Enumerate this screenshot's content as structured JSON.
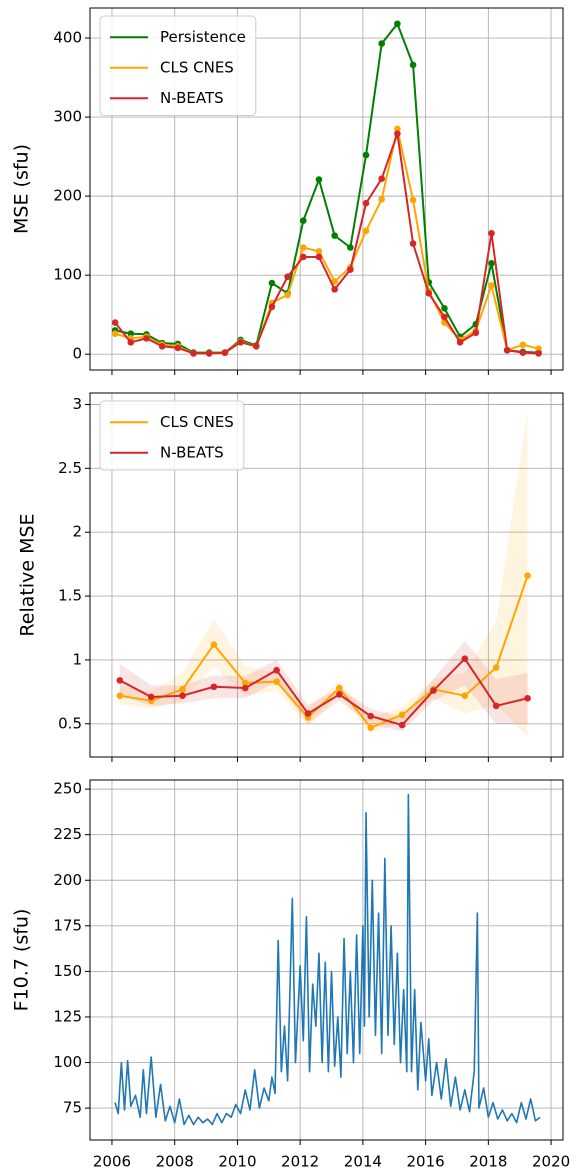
{
  "chart_data": [
    {
      "type": "line",
      "ylabel": "MSE (sfu)",
      "marker": true,
      "grid": true,
      "legend": "upper left",
      "x": [
        2006.1,
        2006.6,
        2007.1,
        2007.6,
        2008.1,
        2008.6,
        2009.1,
        2009.6,
        2010.1,
        2010.6,
        2011.1,
        2011.6,
        2012.1,
        2012.6,
        2013.1,
        2013.6,
        2014.1,
        2014.6,
        2015.1,
        2015.6,
        2016.1,
        2016.6,
        2017.1,
        2017.6,
        2018.1,
        2018.6,
        2019.1,
        2019.6
      ],
      "series": [
        {
          "name": "Persistence",
          "color": "#008000",
          "values": [
            30,
            26,
            25,
            14,
            13,
            2,
            2,
            2,
            18,
            11,
            90,
            77,
            169,
            221,
            150,
            135,
            252,
            393,
            418,
            366,
            91,
            58,
            22,
            38,
            115,
            5,
            3,
            2
          ]
        },
        {
          "name": "CLS CNES",
          "color": "#ffa500",
          "values": [
            26,
            20,
            22,
            12,
            10,
            1,
            1,
            2,
            16,
            10,
            65,
            75,
            135,
            130,
            92,
            110,
            156,
            196,
            285,
            195,
            80,
            40,
            18,
            30,
            87,
            5,
            12,
            7
          ]
        },
        {
          "name": "N-BEATS",
          "color": "#d62728",
          "values": [
            40,
            15,
            20,
            10,
            8,
            1,
            1,
            2,
            15,
            10,
            60,
            98,
            123,
            123,
            82,
            107,
            191,
            222,
            279,
            140,
            77,
            47,
            15,
            27,
            153,
            5,
            2,
            1
          ]
        }
      ],
      "xlim": [
        2005.3,
        2020.38
      ],
      "xticks": [
        2006,
        2008,
        2010,
        2012,
        2014,
        2016,
        2018,
        2020
      ],
      "ylim": [
        -20,
        438
      ],
      "yticks": [
        0,
        100,
        200,
        300,
        400
      ]
    },
    {
      "type": "line",
      "ylabel": "Relative MSE",
      "marker": true,
      "grid": true,
      "legend": "upper left",
      "x": [
        2006.25,
        2007.25,
        2008.25,
        2009.25,
        2010.25,
        2011.25,
        2012.25,
        2013.25,
        2014.25,
        2015.25,
        2016.25,
        2017.25,
        2018.25,
        2019.25
      ],
      "series": [
        {
          "name": "CLS CNES",
          "color": "#ffa500",
          "values": [
            0.72,
            0.68,
            0.77,
            1.12,
            0.82,
            0.83,
            0.55,
            0.78,
            0.47,
            0.57,
            0.77,
            0.72,
            0.94,
            1.66
          ],
          "lower": [
            0.65,
            0.62,
            0.68,
            0.95,
            0.72,
            0.76,
            0.48,
            0.73,
            0.42,
            0.52,
            0.7,
            0.58,
            0.65,
            0.4
          ],
          "upper": [
            0.8,
            0.75,
            0.9,
            1.32,
            0.95,
            0.9,
            0.62,
            0.83,
            0.55,
            0.63,
            0.85,
            0.9,
            1.3,
            2.95
          ]
        },
        {
          "name": "N-BEATS",
          "color": "#d62728",
          "values": [
            0.84,
            0.71,
            0.72,
            0.79,
            0.78,
            0.92,
            0.58,
            0.73,
            0.56,
            0.49,
            0.76,
            1.01,
            0.64,
            0.7
          ],
          "lower": [
            0.72,
            0.64,
            0.66,
            0.7,
            0.7,
            0.83,
            0.5,
            0.68,
            0.5,
            0.44,
            0.68,
            0.8,
            0.5,
            0.5
          ],
          "upper": [
            0.97,
            0.8,
            0.8,
            0.88,
            0.87,
            1.0,
            0.65,
            0.78,
            0.62,
            0.55,
            0.85,
            1.15,
            0.85,
            0.9
          ]
        }
      ],
      "xlim": [
        2005.3,
        2020.38
      ],
      "xticks": [
        2006,
        2008,
        2010,
        2012,
        2014,
        2016,
        2018,
        2020
      ],
      "ylim": [
        0.24,
        3.09
      ],
      "yticks": [
        0.5,
        1.0,
        1.5,
        2.0,
        2.5,
        3.0
      ]
    },
    {
      "type": "line",
      "ylabel": "F10.7 (sfu)",
      "marker": false,
      "grid": true,
      "x": [
        2006.1,
        2006.2,
        2006.3,
        2006.4,
        2006.5,
        2006.6,
        2006.75,
        2006.9,
        2007.0,
        2007.1,
        2007.25,
        2007.4,
        2007.55,
        2007.7,
        2007.85,
        2008.0,
        2008.15,
        2008.3,
        2008.45,
        2008.6,
        2008.75,
        2008.9,
        2009.05,
        2009.2,
        2009.35,
        2009.5,
        2009.65,
        2009.8,
        2009.95,
        2010.1,
        2010.25,
        2010.4,
        2010.55,
        2010.7,
        2010.85,
        2011.0,
        2011.1,
        2011.2,
        2011.3,
        2011.4,
        2011.5,
        2011.6,
        2011.75,
        2011.85,
        2012.0,
        2012.1,
        2012.2,
        2012.3,
        2012.4,
        2012.5,
        2012.6,
        2012.7,
        2012.8,
        2012.9,
        2013.0,
        2013.1,
        2013.2,
        2013.3,
        2013.4,
        2013.5,
        2013.6,
        2013.7,
        2013.8,
        2013.9,
        2014.0,
        2014.05,
        2014.1,
        2014.2,
        2014.3,
        2014.4,
        2014.5,
        2014.6,
        2014.7,
        2014.8,
        2014.9,
        2015.0,
        2015.1,
        2015.2,
        2015.3,
        2015.4,
        2015.45,
        2015.55,
        2015.65,
        2015.75,
        2015.85,
        2016.0,
        2016.1,
        2016.2,
        2016.35,
        2016.5,
        2016.65,
        2016.8,
        2016.95,
        2017.1,
        2017.25,
        2017.4,
        2017.55,
        2017.65,
        2017.7,
        2017.85,
        2018.0,
        2018.15,
        2018.3,
        2018.45,
        2018.6,
        2018.75,
        2018.9,
        2019.05,
        2019.2,
        2019.35,
        2019.5,
        2019.65
      ],
      "series": [
        {
          "name": "F10.7",
          "color": "#1f77b4",
          "values": [
            78,
            72,
            100,
            74,
            101,
            76,
            82,
            70,
            96,
            72,
            103,
            70,
            88,
            68,
            76,
            67,
            80,
            66,
            71,
            66,
            70,
            67,
            69,
            66,
            72,
            67,
            72,
            70,
            77,
            72,
            85,
            74,
            96,
            75,
            86,
            79,
            92,
            83,
            167,
            95,
            120,
            90,
            190,
            100,
            153,
            112,
            180,
            95,
            143,
            120,
            160,
            100,
            155,
            95,
            150,
            98,
            125,
            92,
            168,
            105,
            150,
            100,
            170,
            105,
            175,
            120,
            237,
            125,
            200,
            115,
            182,
            105,
            212,
            115,
            175,
            110,
            160,
            100,
            140,
            95,
            247,
            95,
            140,
            85,
            122,
            90,
            113,
            82,
            100,
            80,
            102,
            76,
            92,
            74,
            85,
            73,
            95,
            182,
            75,
            86,
            70,
            78,
            69,
            74,
            68,
            72,
            67,
            78,
            69,
            80,
            68,
            70
          ]
        }
      ],
      "xlim": [
        2005.3,
        2020.38
      ],
      "xticks": [
        2006,
        2008,
        2010,
        2012,
        2014,
        2016,
        2018,
        2020
      ],
      "ylim": [
        57.5,
        255
      ],
      "yticks": [
        75,
        100,
        125,
        150,
        175,
        200,
        225,
        250
      ]
    }
  ]
}
